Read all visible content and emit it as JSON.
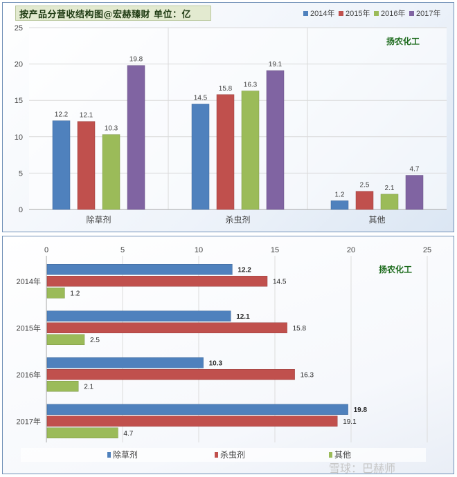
{
  "chart_data": [
    {
      "type": "bar",
      "title": "按产品分营收结构图@宏赫臻财  单位：亿",
      "annotation": "扬农化工",
      "categories": [
        "除草剂",
        "杀虫剂",
        "其他"
      ],
      "series": [
        {
          "name": "2014年",
          "color": "#4f81bd",
          "values": [
            12.2,
            14.5,
            1.2
          ]
        },
        {
          "name": "2015年",
          "color": "#c0504d",
          "values": [
            12.1,
            15.8,
            2.5
          ]
        },
        {
          "name": "2016年",
          "color": "#9bbb59",
          "values": [
            10.3,
            16.3,
            2.1
          ]
        },
        {
          "name": "2017年",
          "color": "#8064a2",
          "values": [
            19.8,
            19.1,
            4.7
          ]
        }
      ],
      "ylim": [
        0,
        25
      ],
      "yticks": [
        0,
        5,
        10,
        15,
        20,
        25
      ],
      "grid": true,
      "legend_position": "top-right"
    },
    {
      "type": "bar",
      "orientation": "horizontal",
      "annotation": "扬农化工",
      "categories": [
        "2014年",
        "2015年",
        "2016年",
        "2017年"
      ],
      "series": [
        {
          "name": "除草剂",
          "color": "#4f81bd",
          "values": [
            12.2,
            12.1,
            10.3,
            19.8
          ]
        },
        {
          "name": "杀虫剂",
          "color": "#c0504d",
          "values": [
            14.5,
            15.8,
            16.3,
            19.1
          ]
        },
        {
          "name": "其他",
          "color": "#9bbb59",
          "values": [
            1.2,
            2.5,
            2.1,
            4.7
          ]
        }
      ],
      "xlim": [
        0,
        25
      ],
      "xticks": [
        0,
        5,
        10,
        15,
        20,
        25
      ],
      "grid": true,
      "legend_position": "bottom"
    }
  ],
  "watermark": "雪球：巴赫师"
}
